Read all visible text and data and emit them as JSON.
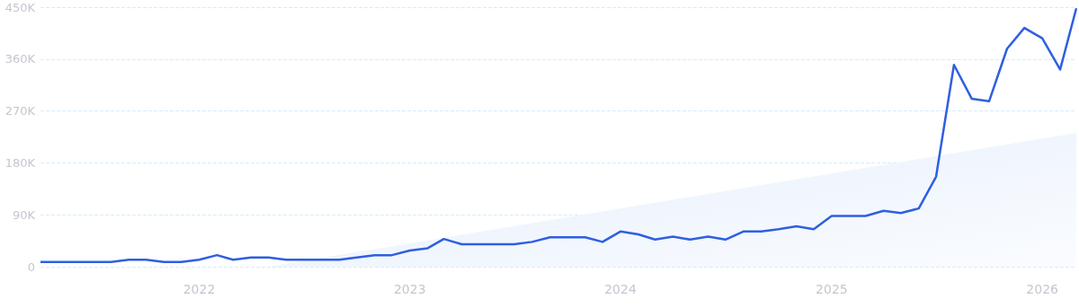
{
  "chart_data": {
    "type": "line",
    "x": [
      "2021-04",
      "2021-05",
      "2021-06",
      "2021-07",
      "2021-08",
      "2021-09",
      "2021-10",
      "2021-11",
      "2021-12",
      "2022-01",
      "2022-02",
      "2022-03",
      "2022-04",
      "2022-05",
      "2022-06",
      "2022-07",
      "2022-08",
      "2022-09",
      "2022-10",
      "2022-11",
      "2022-12",
      "2023-01",
      "2023-02",
      "2023-03",
      "2023-04",
      "2023-05",
      "2023-06",
      "2023-07",
      "2023-08",
      "2023-09",
      "2023-10",
      "2023-11",
      "2023-12",
      "2024-01",
      "2024-02",
      "2024-03",
      "2024-04",
      "2024-05",
      "2024-06",
      "2024-07",
      "2024-08",
      "2024-09",
      "2024-10",
      "2024-11",
      "2024-12",
      "2025-01",
      "2025-02",
      "2025-03",
      "2025-04",
      "2025-05",
      "2025-06",
      "2025-07",
      "2025-08",
      "2025-09",
      "2025-10",
      "2025-11",
      "2025-12",
      "2026-01",
      "2026-02",
      "2026-03"
    ],
    "series": [
      {
        "type": "area",
        "color": "#e6effc",
        "x": [
          "2022-05",
          "2026-03"
        ],
        "values": [
          0,
          232000
        ]
      },
      {
        "color": "#2f5fe0",
        "values": [
          8000,
          8000,
          8000,
          8000,
          8000,
          12000,
          12000,
          8000,
          8000,
          12000,
          20000,
          12000,
          16000,
          16000,
          12000,
          12000,
          12000,
          12000,
          16000,
          20000,
          20000,
          28000,
          32000,
          48000,
          39000,
          39000,
          39000,
          39000,
          43000,
          51000,
          51000,
          51000,
          43000,
          61000,
          56000,
          47000,
          52000,
          47000,
          52000,
          47000,
          61000,
          61000,
          65000,
          70000,
          65000,
          88000,
          88000,
          88000,
          97000,
          93000,
          101000,
          156000,
          350000,
          291000,
          287000,
          378000,
          414000,
          396000,
          342000,
          448000
        ]
      }
    ],
    "xlim": [
      "2021-04",
      "2026-03"
    ],
    "xticks": [
      {
        "value": "2022",
        "label": "2022"
      },
      {
        "value": "2023",
        "label": "2023"
      },
      {
        "value": "2024",
        "label": "2024"
      },
      {
        "value": "2025",
        "label": "2025"
      },
      {
        "value": "2026",
        "label": "2026"
      }
    ],
    "ylim": [
      0,
      450000
    ],
    "yticks": [
      {
        "value": 0,
        "label": "0"
      },
      {
        "value": 90000,
        "label": "90K"
      },
      {
        "value": 180000,
        "label": "180K"
      },
      {
        "value": 270000,
        "label": "270K"
      },
      {
        "value": 360000,
        "label": "360K"
      },
      {
        "value": 450000,
        "label": "450K"
      }
    ],
    "grid": "y",
    "marker": "none",
    "line_style": "solid"
  }
}
